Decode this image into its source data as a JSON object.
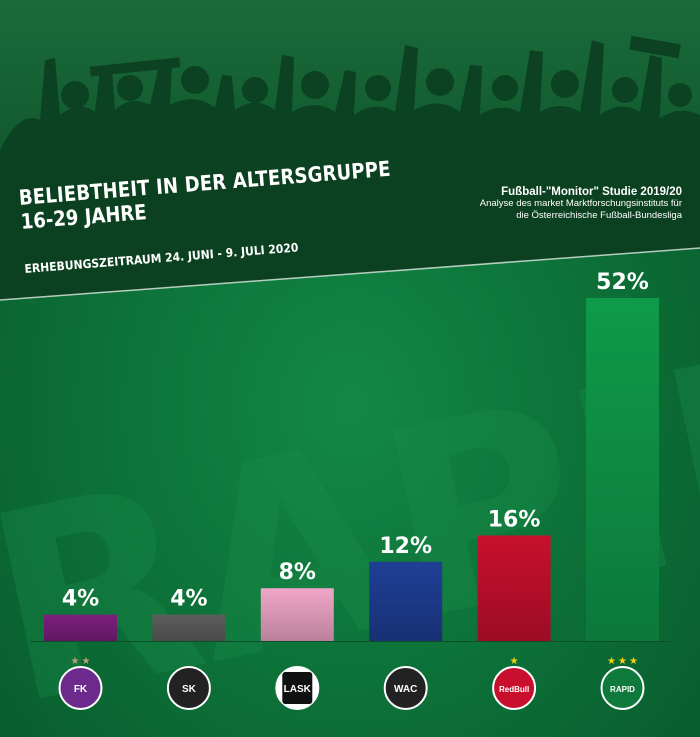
{
  "header": {
    "title_line1": "BELIEBTHEIT IN DER ALTERSGRUPPE",
    "title_line2": "16-29 JAHRE",
    "period": "ERHEBUNGSZEITRAUM 24. JUNI - 9. JULI 2020",
    "study_title": "Fußball-\"Monitor\" Studie 2019/20",
    "study_line2": "Analyse des market Marktforschungsinstituts für",
    "study_line3": "die Österreichische Fußball-Bundesliga"
  },
  "watermark": "RAPID",
  "chart_data": {
    "type": "bar",
    "categories": [
      "Austria Wien",
      "Sturm Graz",
      "LASK",
      "WAC",
      "Red Bull Salzburg",
      "Rapid"
    ],
    "values": [
      4,
      4,
      8,
      12,
      16,
      52
    ],
    "value_labels": [
      "4%",
      "4%",
      "8%",
      "12%",
      "16%",
      "52%"
    ],
    "bar_colors": [
      "#7b1f7e",
      "#5e5e5e",
      "#f0a6c8",
      "#1f3f96",
      "#c8102e",
      "#0f9a4a"
    ],
    "ylim": [
      0,
      52
    ],
    "title": "",
    "xlabel": "",
    "ylabel": ""
  },
  "logos": [
    {
      "name": "austria-wien-logo-icon",
      "text": "FK",
      "color": "#6c2a8c"
    },
    {
      "name": "sturm-graz-logo-icon",
      "text": "SK",
      "color": "#222222"
    },
    {
      "name": "lask-logo-icon",
      "text": "LASK",
      "color": "#ffffff"
    },
    {
      "name": "wac-logo-icon",
      "text": "WAC",
      "color": "#222222"
    },
    {
      "name": "red-bull-salzburg-logo-icon",
      "text": "RedBull",
      "color": "#c8102e"
    },
    {
      "name": "rapid-logo-icon",
      "text": "RAPID",
      "color": "#0f7a3b"
    }
  ]
}
